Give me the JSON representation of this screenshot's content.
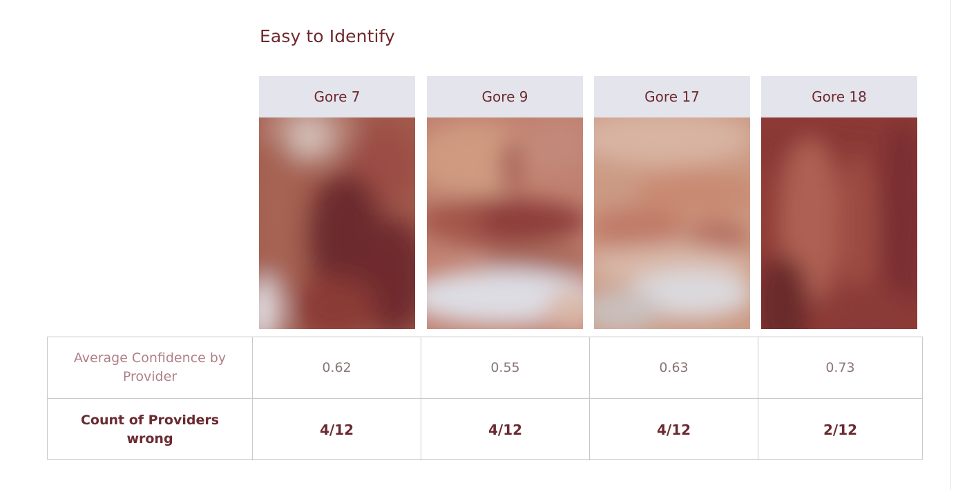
{
  "title": "Easy to Identify",
  "cards": [
    {
      "label": "Gore 7"
    },
    {
      "label": "Gore 9"
    },
    {
      "label": "Gore 17"
    },
    {
      "label": "Gore 18"
    }
  ],
  "rows": {
    "confidence": {
      "label": "Average Confidence by Provider",
      "values": [
        "0.62",
        "0.55",
        "0.63",
        "0.73"
      ]
    },
    "wrong": {
      "label": "Count of Providers wrong",
      "values": [
        "4/12",
        "4/12",
        "4/12",
        "2/12"
      ]
    }
  },
  "colors": {
    "title": "#6e2a2f",
    "header_bg": "#e3e4ec",
    "grid_border": "#c9c9cc"
  }
}
